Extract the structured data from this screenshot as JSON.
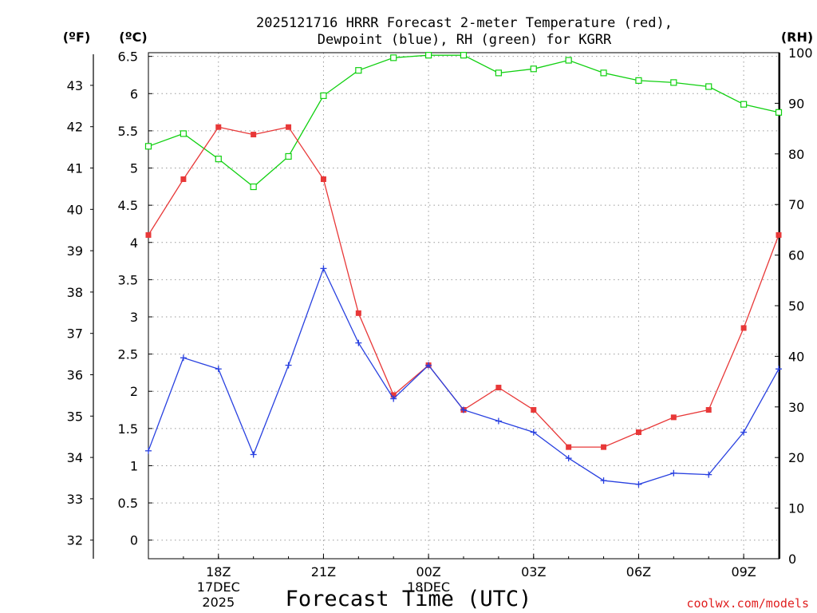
{
  "chart_data": {
    "type": "line",
    "title": "2025121716 HRRR Forecast 2-meter Temperature (red), Dewpoint (blue), RH (green) for KGRR",
    "title_lines": [
      "2025121716 HRRR Forecast 2-meter Temperature (red),",
      "Dewpoint (blue), RH (green) for KGRR"
    ],
    "xlabel": "Forecast Time (UTC)",
    "credit": "coolwx.com/models",
    "axis_units": {
      "fahrenheit": "(ºF)",
      "celsius": "(ºC)",
      "rh": "(RH)"
    },
    "x_hours": [
      16,
      17,
      18,
      19,
      20,
      21,
      22,
      23,
      24,
      25,
      26,
      27,
      28,
      29,
      30,
      31,
      32,
      33,
      34
    ],
    "x_ticks": [
      {
        "hour": 18,
        "label": "18Z",
        "date": "17DEC",
        "year": "2025"
      },
      {
        "hour": 21,
        "label": "21Z"
      },
      {
        "hour": 24,
        "label": "00Z",
        "date": "18DEC"
      },
      {
        "hour": 27,
        "label": "03Z"
      },
      {
        "hour": 30,
        "label": "06Z"
      },
      {
        "hour": 33,
        "label": "09Z"
      }
    ],
    "xlim": [
      16,
      34
    ],
    "celsius_axis": {
      "range": [
        -0.25,
        6.55
      ],
      "ticks": [
        0,
        0.5,
        1,
        1.5,
        2,
        2.5,
        3,
        3.5,
        4,
        4.5,
        5,
        5.5,
        6,
        6.5
      ],
      "tick_labels": [
        "0",
        "0.5",
        "1",
        "1.5",
        "2",
        "2.5",
        "3",
        "3.5",
        "4",
        "4.5",
        "5",
        "5.5",
        "6",
        "6.5"
      ]
    },
    "fahrenheit_axis": {
      "ticks": [
        32,
        33,
        34,
        35,
        36,
        37,
        38,
        39,
        40,
        41,
        42,
        43
      ],
      "tick_labels": [
        "32",
        "33",
        "34",
        "35",
        "36",
        "37",
        "38",
        "39",
        "40",
        "41",
        "42",
        "43"
      ]
    },
    "rh_axis": {
      "range": [
        0,
        100
      ],
      "ticks": [
        0,
        10,
        20,
        30,
        40,
        50,
        60,
        70,
        80,
        90,
        100
      ],
      "tick_labels": [
        "0",
        "10",
        "20",
        "30",
        "40",
        "50",
        "60",
        "70",
        "80",
        "90",
        "100"
      ]
    },
    "series": [
      {
        "name": "2-meter Temperature",
        "units": "C",
        "color": "#e83838",
        "marker": "filled-square",
        "values": [
          4.1,
          4.85,
          5.55,
          5.45,
          5.55,
          4.85,
          3.05,
          1.95,
          2.35,
          1.75,
          2.05,
          1.75,
          1.25,
          1.25,
          1.45,
          1.65,
          1.75,
          2.85,
          4.1
        ]
      },
      {
        "name": "Dewpoint",
        "units": "C",
        "color": "#2840e0",
        "marker": "plus",
        "values": [
          1.2,
          2.45,
          2.3,
          1.15,
          2.35,
          3.65,
          2.65,
          1.9,
          2.35,
          1.75,
          1.6,
          1.45,
          1.1,
          0.8,
          0.75,
          0.9,
          0.88,
          1.45,
          2.3
        ]
      },
      {
        "name": "RH",
        "units": "%",
        "color": "#10d010",
        "marker": "open-square",
        "values": [
          81.5,
          84,
          79,
          73.5,
          79.5,
          91.5,
          96.5,
          99,
          99.5,
          99.5,
          96,
          96.8,
          98.5,
          96,
          94.5,
          94.1,
          93.3,
          89.8,
          88.2
        ]
      }
    ]
  }
}
